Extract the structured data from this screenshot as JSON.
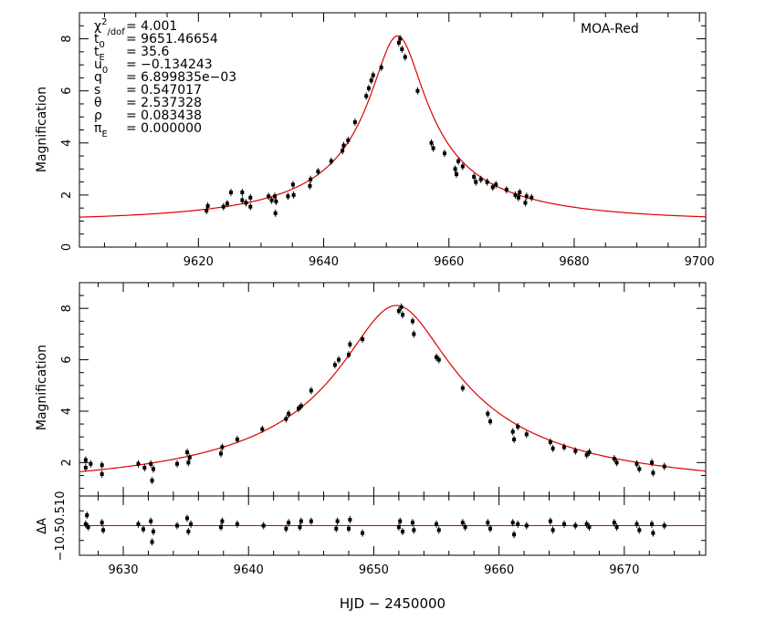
{
  "chart_data": [
    {
      "type": "scatter",
      "panel": "top",
      "ylabel": "Magnification",
      "xlim": [
        9601,
        9701
      ],
      "ylim": [
        0,
        9
      ],
      "xticks": [
        9620,
        9640,
        9660,
        9680,
        9700
      ],
      "yticks": [
        0,
        2,
        4,
        6,
        8
      ],
      "legend_label": "MOA-Red",
      "params": [
        {
          "sym": "χ",
          "sup": "2",
          "sub": "/dof",
          "val": "= 4.001"
        },
        {
          "sym": "t",
          "sub": "0",
          "val": "= 9651.46654"
        },
        {
          "sym": "t",
          "sub": "E",
          "val": "= 35.6"
        },
        {
          "sym": "u",
          "sub": "0",
          "val": "= −0.134243"
        },
        {
          "sym": "q",
          "val": "= 6.899835e−03"
        },
        {
          "sym": "s",
          "val": "= 0.547017"
        },
        {
          "sym": "θ",
          "val": "= 2.537328"
        },
        {
          "sym": "ρ",
          "val": "= 0.083438"
        },
        {
          "sym": "π",
          "sub": "E",
          "val": "= 0.000000"
        }
      ],
      "model": {
        "t0": 9651.8,
        "tE": 35.6,
        "u0": 0.124
      },
      "points": [
        {
          "x": 9621.3,
          "y": 1.4
        },
        {
          "x": 9621.5,
          "y": 1.58
        },
        {
          "x": 9624.0,
          "y": 1.55
        },
        {
          "x": 9624.6,
          "y": 1.67
        },
        {
          "x": 9625.2,
          "y": 2.1
        },
        {
          "x": 9627.0,
          "y": 1.8
        },
        {
          "x": 9627.0,
          "y": 2.1
        },
        {
          "x": 9627.6,
          "y": 1.7
        },
        {
          "x": 9628.3,
          "y": 1.55
        },
        {
          "x": 9628.3,
          "y": 1.9
        },
        {
          "x": 9631.2,
          "y": 1.95
        },
        {
          "x": 9631.7,
          "y": 1.8
        },
        {
          "x": 9632.2,
          "y": 1.95
        },
        {
          "x": 9632.3,
          "y": 1.3
        },
        {
          "x": 9632.4,
          "y": 1.75
        },
        {
          "x": 9634.3,
          "y": 1.95
        },
        {
          "x": 9635.1,
          "y": 2.4
        },
        {
          "x": 9635.2,
          "y": 2.0
        },
        {
          "x": 9637.8,
          "y": 2.35
        },
        {
          "x": 9637.9,
          "y": 2.6
        },
        {
          "x": 9639.1,
          "y": 2.9
        },
        {
          "x": 9641.2,
          "y": 3.3
        },
        {
          "x": 9643.0,
          "y": 3.7
        },
        {
          "x": 9643.2,
          "y": 3.9
        },
        {
          "x": 9643.9,
          "y": 4.1
        },
        {
          "x": 9645.0,
          "y": 4.8
        },
        {
          "x": 9646.8,
          "y": 5.8
        },
        {
          "x": 9647.2,
          "y": 6.1
        },
        {
          "x": 9647.6,
          "y": 6.4
        },
        {
          "x": 9647.9,
          "y": 6.6
        },
        {
          "x": 9649.2,
          "y": 6.9
        },
        {
          "x": 9652.0,
          "y": 7.85
        },
        {
          "x": 9652.2,
          "y": 8.0
        },
        {
          "x": 9652.5,
          "y": 7.6
        },
        {
          "x": 9653.0,
          "y": 7.3
        },
        {
          "x": 9655.0,
          "y": 6.0
        },
        {
          "x": 9657.2,
          "y": 4.0
        },
        {
          "x": 9657.5,
          "y": 3.8
        },
        {
          "x": 9659.3,
          "y": 3.6
        },
        {
          "x": 9661.0,
          "y": 3.0
        },
        {
          "x": 9661.2,
          "y": 2.8
        },
        {
          "x": 9661.5,
          "y": 3.3
        },
        {
          "x": 9662.2,
          "y": 3.1
        },
        {
          "x": 9664.0,
          "y": 2.7
        },
        {
          "x": 9664.3,
          "y": 2.5
        },
        {
          "x": 9665.1,
          "y": 2.6
        },
        {
          "x": 9666.1,
          "y": 2.5
        },
        {
          "x": 9667.0,
          "y": 2.3
        },
        {
          "x": 9667.5,
          "y": 2.4
        },
        {
          "x": 9669.2,
          "y": 2.2
        },
        {
          "x": 9670.6,
          "y": 2.0
        },
        {
          "x": 9671.1,
          "y": 1.9
        },
        {
          "x": 9671.3,
          "y": 2.1
        },
        {
          "x": 9672.2,
          "y": 1.7
        },
        {
          "x": 9672.4,
          "y": 1.95
        },
        {
          "x": 9673.2,
          "y": 1.9
        }
      ]
    },
    {
      "type": "scatter",
      "panel": "middle",
      "ylabel": "Magnification",
      "xlim": [
        9626.5,
        9676.5
      ],
      "ylim": [
        0.7,
        9.0
      ],
      "yticks": [
        2,
        4,
        6,
        8
      ],
      "model": {
        "t0": 9651.8,
        "tE": 35.6,
        "u0": 0.124
      },
      "points": [
        {
          "x": 9627.0,
          "y": 1.8
        },
        {
          "x": 9627.0,
          "y": 2.1
        },
        {
          "x": 9627.4,
          "y": 1.95
        },
        {
          "x": 9628.3,
          "y": 1.55
        },
        {
          "x": 9628.3,
          "y": 1.9
        },
        {
          "x": 9631.2,
          "y": 1.95
        },
        {
          "x": 9631.7,
          "y": 1.8
        },
        {
          "x": 9632.2,
          "y": 1.95
        },
        {
          "x": 9632.3,
          "y": 1.3
        },
        {
          "x": 9632.4,
          "y": 1.75
        },
        {
          "x": 9634.3,
          "y": 1.95
        },
        {
          "x": 9635.1,
          "y": 2.4
        },
        {
          "x": 9635.2,
          "y": 2.0
        },
        {
          "x": 9635.3,
          "y": 2.2
        },
        {
          "x": 9637.8,
          "y": 2.35
        },
        {
          "x": 9637.9,
          "y": 2.6
        },
        {
          "x": 9639.1,
          "y": 2.9
        },
        {
          "x": 9641.1,
          "y": 3.3
        },
        {
          "x": 9643.0,
          "y": 3.7
        },
        {
          "x": 9643.2,
          "y": 3.9
        },
        {
          "x": 9644.0,
          "y": 4.1
        },
        {
          "x": 9644.2,
          "y": 4.2
        },
        {
          "x": 9645.0,
          "y": 4.8
        },
        {
          "x": 9646.9,
          "y": 5.8
        },
        {
          "x": 9647.2,
          "y": 6.0
        },
        {
          "x": 9648.0,
          "y": 6.2
        },
        {
          "x": 9648.1,
          "y": 6.6
        },
        {
          "x": 9649.1,
          "y": 6.8
        },
        {
          "x": 9652.0,
          "y": 7.9
        },
        {
          "x": 9652.2,
          "y": 8.05
        },
        {
          "x": 9652.3,
          "y": 7.75
        },
        {
          "x": 9653.1,
          "y": 7.5
        },
        {
          "x": 9653.2,
          "y": 7.0
        },
        {
          "x": 9655.0,
          "y": 6.1
        },
        {
          "x": 9655.2,
          "y": 6.0
        },
        {
          "x": 9657.1,
          "y": 4.9
        },
        {
          "x": 9659.1,
          "y": 3.9
        },
        {
          "x": 9659.3,
          "y": 3.6
        },
        {
          "x": 9661.1,
          "y": 3.2
        },
        {
          "x": 9661.2,
          "y": 2.9
        },
        {
          "x": 9661.5,
          "y": 3.4
        },
        {
          "x": 9662.2,
          "y": 3.1
        },
        {
          "x": 9664.1,
          "y": 2.8
        },
        {
          "x": 9664.3,
          "y": 2.55
        },
        {
          "x": 9665.2,
          "y": 2.6
        },
        {
          "x": 9666.1,
          "y": 2.45
        },
        {
          "x": 9667.0,
          "y": 2.3
        },
        {
          "x": 9667.2,
          "y": 2.4
        },
        {
          "x": 9669.2,
          "y": 2.15
        },
        {
          "x": 9669.4,
          "y": 2.0
        },
        {
          "x": 9671.0,
          "y": 1.95
        },
        {
          "x": 9671.2,
          "y": 1.75
        },
        {
          "x": 9672.2,
          "y": 2.0
        },
        {
          "x": 9672.3,
          "y": 1.6
        },
        {
          "x": 9673.2,
          "y": 1.85
        }
      ]
    },
    {
      "type": "scatter",
      "panel": "bottom",
      "ylabel": "ΔA",
      "xlabel": "HJD − 2450000",
      "xlim": [
        9626.5,
        9676.5
      ],
      "ylim": [
        -1.0,
        1.0
      ],
      "ytick_text": "−10.50.510",
      "xticks": [
        9630,
        9640,
        9650,
        9660,
        9670
      ],
      "points": [
        {
          "x": 9627.0,
          "y": 0.05
        },
        {
          "x": 9627.1,
          "y": 0.35
        },
        {
          "x": 9627.2,
          "y": -0.05
        },
        {
          "x": 9628.3,
          "y": 0.1
        },
        {
          "x": 9628.4,
          "y": -0.15
        },
        {
          "x": 9631.2,
          "y": 0.05
        },
        {
          "x": 9631.6,
          "y": -0.12
        },
        {
          "x": 9632.2,
          "y": 0.15
        },
        {
          "x": 9632.3,
          "y": -0.55
        },
        {
          "x": 9632.4,
          "y": -0.2
        },
        {
          "x": 9634.3,
          "y": 0.0
        },
        {
          "x": 9635.1,
          "y": 0.25
        },
        {
          "x": 9635.2,
          "y": -0.2
        },
        {
          "x": 9635.4,
          "y": 0.05
        },
        {
          "x": 9637.8,
          "y": -0.05
        },
        {
          "x": 9637.9,
          "y": 0.15
        },
        {
          "x": 9639.1,
          "y": 0.05
        },
        {
          "x": 9641.2,
          "y": 0.0
        },
        {
          "x": 9643.0,
          "y": -0.1
        },
        {
          "x": 9643.2,
          "y": 0.1
        },
        {
          "x": 9644.1,
          "y": -0.05
        },
        {
          "x": 9644.2,
          "y": 0.15
        },
        {
          "x": 9645.0,
          "y": 0.15
        },
        {
          "x": 9647.0,
          "y": -0.1
        },
        {
          "x": 9647.1,
          "y": 0.15
        },
        {
          "x": 9648.0,
          "y": -0.1
        },
        {
          "x": 9648.1,
          "y": 0.2
        },
        {
          "x": 9649.1,
          "y": -0.25
        },
        {
          "x": 9652.0,
          "y": -0.05
        },
        {
          "x": 9652.1,
          "y": 0.15
        },
        {
          "x": 9652.3,
          "y": -0.2
        },
        {
          "x": 9653.1,
          "y": 0.1
        },
        {
          "x": 9653.2,
          "y": -0.15
        },
        {
          "x": 9655.0,
          "y": 0.05
        },
        {
          "x": 9655.2,
          "y": -0.15
        },
        {
          "x": 9657.1,
          "y": 0.1
        },
        {
          "x": 9657.3,
          "y": -0.05
        },
        {
          "x": 9659.1,
          "y": 0.1
        },
        {
          "x": 9659.3,
          "y": -0.1
        },
        {
          "x": 9661.1,
          "y": 0.1
        },
        {
          "x": 9661.2,
          "y": -0.3
        },
        {
          "x": 9661.5,
          "y": 0.05
        },
        {
          "x": 9662.2,
          "y": 0.0
        },
        {
          "x": 9664.1,
          "y": 0.15
        },
        {
          "x": 9664.3,
          "y": -0.15
        },
        {
          "x": 9665.2,
          "y": 0.05
        },
        {
          "x": 9666.1,
          "y": 0.0
        },
        {
          "x": 9667.0,
          "y": 0.05
        },
        {
          "x": 9667.2,
          "y": -0.05
        },
        {
          "x": 9669.2,
          "y": 0.1
        },
        {
          "x": 9669.4,
          "y": -0.05
        },
        {
          "x": 9671.0,
          "y": 0.05
        },
        {
          "x": 9671.2,
          "y": -0.15
        },
        {
          "x": 9672.2,
          "y": 0.05
        },
        {
          "x": 9672.3,
          "y": -0.25
        },
        {
          "x": 9673.2,
          "y": 0.0
        }
      ]
    }
  ]
}
